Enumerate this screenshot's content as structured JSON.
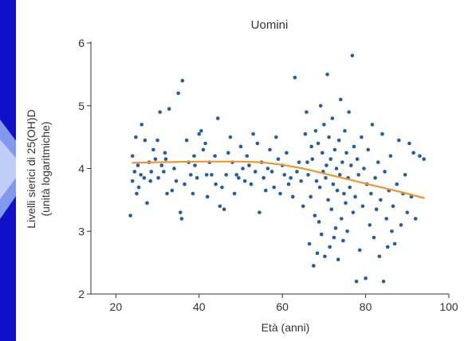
{
  "colors": {
    "background": "#1010c8",
    "panel": "#ffffff",
    "points": "#1f5fa6",
    "trend": "#f0962a",
    "axis": "#333333"
  },
  "chart_data": {
    "type": "scatter",
    "title": "Uomini",
    "xlabel": "Età (anni)",
    "ylabel": "Livelli sierici di 25(OH)D",
    "ylabel2": "(unità logaritmiche)",
    "xlim": [
      14,
      100
    ],
    "ylim": [
      2,
      6
    ],
    "xticks": [
      20,
      40,
      60,
      80,
      100
    ],
    "yticks": [
      2,
      3,
      4,
      5,
      6
    ],
    "grid": false,
    "series": [
      {
        "type": "scatter",
        "points": [
          [
            23.5,
            3.25
          ],
          [
            24,
            3.8
          ],
          [
            24,
            4.2
          ],
          [
            24.5,
            3.95
          ],
          [
            24.8,
            4.5
          ],
          [
            25,
            3.6
          ],
          [
            25.3,
            4.05
          ],
          [
            25.5,
            3.7
          ],
          [
            26,
            3.9
          ],
          [
            26.2,
            4.7
          ],
          [
            26.8,
            3.85
          ],
          [
            27,
            4.45
          ],
          [
            27.5,
            3.45
          ],
          [
            28,
            4.1
          ],
          [
            28.3,
            3.8
          ],
          [
            28.5,
            3.95
          ],
          [
            29,
            4.3
          ],
          [
            29.5,
            4.15
          ],
          [
            30,
            4.45
          ],
          [
            30.2,
            3.85
          ],
          [
            30.6,
            4.9
          ],
          [
            31,
            4.05
          ],
          [
            31.5,
            3.95
          ],
          [
            31.8,
            4.25
          ],
          [
            32,
            4.15
          ],
          [
            32.3,
            3.6
          ],
          [
            32.8,
            4.95
          ],
          [
            33.5,
            3.65
          ],
          [
            34,
            4.0
          ],
          [
            34.5,
            3.8
          ],
          [
            35,
            5.2
          ],
          [
            35.5,
            3.3
          ],
          [
            35.8,
            3.2
          ],
          [
            36,
            5.4
          ],
          [
            36.5,
            3.75
          ],
          [
            37,
            4.45
          ],
          [
            37.5,
            4.1
          ],
          [
            38,
            3.9
          ],
          [
            38.5,
            3.6
          ],
          [
            38.8,
            4.2
          ],
          [
            39,
            4.05
          ],
          [
            39.5,
            3.85
          ],
          [
            40,
            4.55
          ],
          [
            40.5,
            4.6
          ],
          [
            41,
            4.3
          ],
          [
            41.5,
            4.4
          ],
          [
            41.8,
            3.9
          ],
          [
            42,
            3.55
          ],
          [
            42.5,
            4.1
          ],
          [
            43,
            3.9
          ],
          [
            43.8,
            4.2
          ],
          [
            44,
            3.75
          ],
          [
            44.5,
            4.8
          ],
          [
            45,
            3.4
          ],
          [
            45.5,
            3.7
          ],
          [
            46,
            3.35
          ],
          [
            46.5,
            3.9
          ],
          [
            47,
            4.25
          ],
          [
            47.5,
            4.5
          ],
          [
            48,
            4.1
          ],
          [
            48.5,
            3.6
          ],
          [
            49,
            3.9
          ],
          [
            49.5,
            3.85
          ],
          [
            50,
            4.35
          ],
          [
            50.5,
            4.0
          ],
          [
            51,
            3.8
          ],
          [
            51.5,
            4.2
          ],
          [
            52,
            4.05
          ],
          [
            52.5,
            3.75
          ],
          [
            53,
            4.55
          ],
          [
            53.5,
            3.95
          ],
          [
            54,
            4.4
          ],
          [
            54.5,
            3.3
          ],
          [
            55,
            4.1
          ],
          [
            55.5,
            3.85
          ],
          [
            56,
            3.65
          ],
          [
            56.5,
            4.0
          ],
          [
            57,
            4.3
          ],
          [
            57.5,
            3.95
          ],
          [
            58,
            3.7
          ],
          [
            58.5,
            4.5
          ],
          [
            59,
            4.15
          ],
          [
            59.5,
            3.6
          ],
          [
            60,
            4.05
          ],
          [
            60.5,
            3.9
          ],
          [
            61,
            4.25
          ],
          [
            61.5,
            3.75
          ],
          [
            62,
            3.85
          ],
          [
            62.5,
            3.55
          ],
          [
            63,
            5.45
          ],
          [
            63.5,
            3.95
          ],
          [
            64,
            4.1
          ],
          [
            64.5,
            3.8
          ],
          [
            65,
            3.4
          ],
          [
            65.5,
            4.55
          ],
          [
            65.8,
            4.9
          ],
          [
            66,
            4.1
          ],
          [
            66.2,
            3.9
          ],
          [
            66.5,
            2.8
          ],
          [
            66.8,
            3.55
          ],
          [
            67,
            4.35
          ],
          [
            67.2,
            4.15
          ],
          [
            67.5,
            2.45
          ],
          [
            67.8,
            3.25
          ],
          [
            68,
            4.6
          ],
          [
            68.2,
            3.8
          ],
          [
            68.4,
            2.65
          ],
          [
            68.6,
            4.4
          ],
          [
            68.8,
            3.15
          ],
          [
            69,
            3.7
          ],
          [
            69.2,
            5.0
          ],
          [
            69.4,
            2.95
          ],
          [
            69.6,
            4.25
          ],
          [
            69.8,
            3.95
          ],
          [
            70,
            4.7
          ],
          [
            70.2,
            2.6
          ],
          [
            70.4,
            3.85
          ],
          [
            70.6,
            4.05
          ],
          [
            70.8,
            5.5
          ],
          [
            71,
            3.5
          ],
          [
            71.2,
            4.5
          ],
          [
            71.4,
            2.75
          ],
          [
            71.6,
            4.15
          ],
          [
            71.8,
            3.35
          ],
          [
            72,
            4.8
          ],
          [
            72.2,
            3.75
          ],
          [
            72.4,
            2.9
          ],
          [
            72.6,
            4.3
          ],
          [
            72.8,
            3.05
          ],
          [
            73,
            4.0
          ],
          [
            73.2,
            3.65
          ],
          [
            73.4,
            2.55
          ],
          [
            73.6,
            4.45
          ],
          [
            73.8,
            3.9
          ],
          [
            74,
            5.1
          ],
          [
            74.2,
            3.2
          ],
          [
            74.4,
            4.1
          ],
          [
            74.6,
            2.85
          ],
          [
            74.8,
            3.6
          ],
          [
            75,
            4.6
          ],
          [
            75.2,
            3.45
          ],
          [
            75.4,
            4.25
          ],
          [
            75.6,
            3.0
          ],
          [
            75.8,
            3.85
          ],
          [
            76,
            4.9
          ],
          [
            76.2,
            3.7
          ],
          [
            76.5,
            4.05
          ],
          [
            76.8,
            5.8
          ],
          [
            77,
            3.3
          ],
          [
            77.2,
            4.35
          ],
          [
            77.5,
            3.55
          ],
          [
            77.8,
            2.2
          ],
          [
            78,
            4.15
          ],
          [
            78.3,
            3.9
          ],
          [
            78.6,
            2.7
          ],
          [
            79,
            4.5
          ],
          [
            79.3,
            3.4
          ],
          [
            79.6,
            4.0
          ],
          [
            80,
            2.25
          ],
          [
            80.3,
            3.75
          ],
          [
            80.6,
            4.3
          ],
          [
            81,
            3.1
          ],
          [
            81.3,
            3.6
          ],
          [
            81.6,
            4.7
          ],
          [
            82,
            2.9
          ],
          [
            82.3,
            3.85
          ],
          [
            82.6,
            3.35
          ],
          [
            83,
            4.1
          ],
          [
            83.3,
            2.6
          ],
          [
            83.6,
            3.5
          ],
          [
            84,
            4.55
          ],
          [
            84.3,
            2.2
          ],
          [
            84.6,
            3.95
          ],
          [
            85,
            3.2
          ],
          [
            85.3,
            2.75
          ],
          [
            85.6,
            3.65
          ],
          [
            86,
            4.2
          ],
          [
            86.3,
            3.0
          ],
          [
            86.6,
            3.4
          ],
          [
            87,
            2.8
          ],
          [
            87.5,
            3.75
          ],
          [
            88,
            4.45
          ],
          [
            88.5,
            3.1
          ],
          [
            89,
            3.6
          ],
          [
            89.5,
            3.9
          ],
          [
            90,
            3.3
          ],
          [
            90.5,
            4.4
          ],
          [
            91,
            3.55
          ],
          [
            91.5,
            4.25
          ],
          [
            92,
            3.2
          ],
          [
            93,
            4.2
          ],
          [
            94,
            4.15
          ]
        ]
      },
      {
        "type": "line",
        "points": [
          [
            24,
            4.09
          ],
          [
            30,
            4.1
          ],
          [
            40,
            4.11
          ],
          [
            50,
            4.11
          ],
          [
            55,
            4.1
          ],
          [
            60,
            4.06
          ],
          [
            65,
            4.0
          ],
          [
            70,
            3.92
          ],
          [
            75,
            3.84
          ],
          [
            80,
            3.76
          ],
          [
            85,
            3.68
          ],
          [
            90,
            3.6
          ],
          [
            94,
            3.53
          ]
        ]
      }
    ]
  }
}
